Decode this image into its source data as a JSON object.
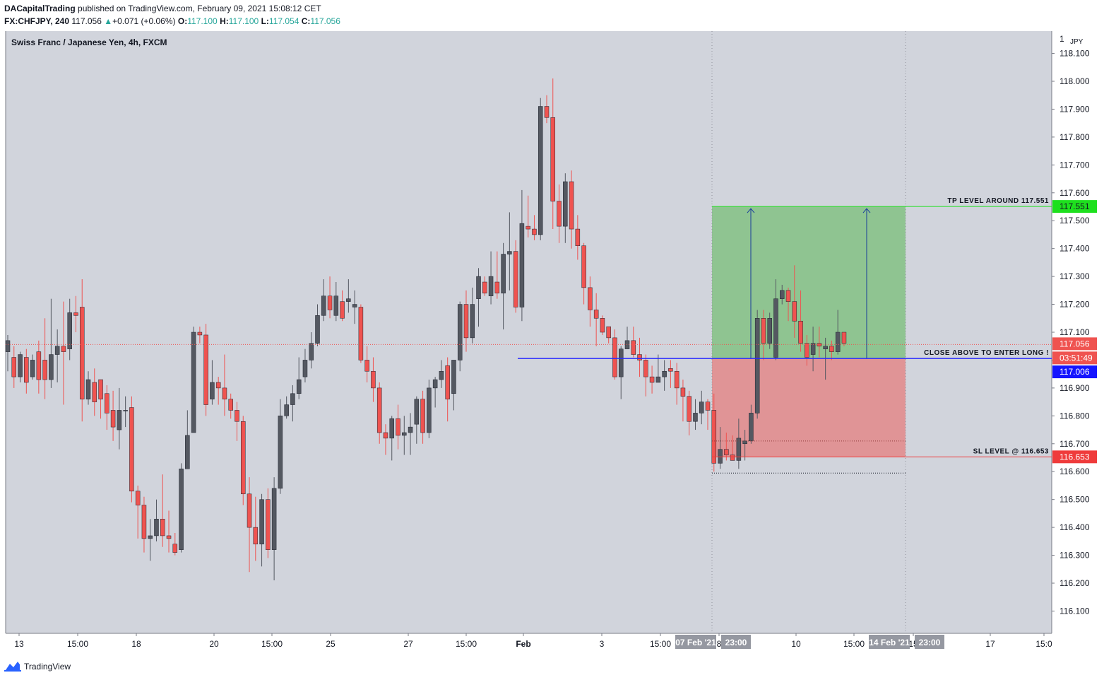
{
  "header": {
    "publisher": "DACapitalTrading",
    "published_text": "published on TradingView.com, February 09, 2021 15:08:12 CET",
    "symbol": "FX:CHFJPY, 240",
    "last": "117.056",
    "change": "+0.071 (+0.06%)",
    "o_label": "O:",
    "o": "117.100",
    "h_label": "H:",
    "h": "117.100",
    "l_label": "L:",
    "l": "117.054",
    "c_label": "C:",
    "c": "117.056"
  },
  "footer": {
    "brand": "TradingView"
  },
  "colors": {
    "background": "#d1d4dc",
    "up_candle": "#545861",
    "down_candle": "#ef5350",
    "tp_zone": "#8fc491",
    "sl_zone": "#e09496",
    "entry_line": "#2a2aff",
    "tp_line": "#1ee01e",
    "sl_line": "#ef3b3b"
  },
  "chart_data": {
    "type": "candlestick",
    "title": "Swiss Franc / Japanese Yen, 4h, FXCM",
    "ylabel": "JPY",
    "ylim": [
      116.02,
      118.18
    ],
    "y_ticks": [
      "116.100",
      "116.200",
      "116.300",
      "116.400",
      "116.500",
      "116.600",
      "116.700",
      "116.800",
      "116.900",
      "117.000",
      "117.100",
      "117.200",
      "117.300",
      "117.400",
      "117.500",
      "117.600",
      "117.700",
      "117.800",
      "117.900",
      "118.000",
      "118.100"
    ],
    "y_tick_top": "1",
    "x_ticks": [
      "13",
      "15:00",
      "18",
      "20",
      "15:00",
      "25",
      "27",
      "15:00",
      "Feb",
      "3",
      "15:00",
      "8",
      "10",
      "15:00",
      "15",
      "17",
      "15:0"
    ],
    "x_tick_bold": [
      "Feb"
    ],
    "x_highlight_labels": [
      "07 Feb '21",
      "23:00",
      "14 Feb '21",
      "23:00"
    ],
    "price_badges": {
      "tp": "117.551",
      "last": "117.056",
      "countdown": "03:51:49",
      "entry": "117.006",
      "sl": "116.653"
    },
    "annotations": {
      "tp": "TP LEVEL AROUND 117.551",
      "entry": "CLOSE ABOVE TO ENTER LONG !",
      "sl": "SL LEVEL @ 116.653"
    },
    "levels": {
      "tp": 117.551,
      "entry": 117.006,
      "sl": 116.653,
      "last": 117.056,
      "stop_dotted": 116.71,
      "lower_dotted": 116.595
    },
    "candles": [
      [
        117.03,
        117.07,
        116.96,
        117.09
      ],
      [
        117.01,
        116.94,
        116.9,
        117.05
      ],
      [
        116.94,
        117.02,
        116.92,
        117.03
      ],
      [
        117.01,
        116.92,
        116.88,
        117.04
      ],
      [
        116.94,
        117.0,
        116.93,
        117.02
      ],
      [
        117.03,
        116.93,
        116.88,
        117.07
      ],
      [
        117.0,
        116.93,
        116.86,
        117.15
      ],
      [
        116.93,
        117.02,
        116.9,
        117.22
      ],
      [
        117.02,
        117.05,
        116.92,
        117.11
      ],
      [
        117.05,
        117.03,
        116.84,
        117.21
      ],
      [
        117.04,
        117.17,
        117.0,
        117.22
      ],
      [
        117.17,
        117.16,
        117.1,
        117.23
      ],
      [
        117.19,
        116.86,
        116.78,
        117.29
      ],
      [
        116.86,
        116.93,
        116.84,
        116.96
      ],
      [
        116.92,
        116.85,
        116.8,
        116.97
      ],
      [
        116.93,
        116.86,
        116.79,
        116.93
      ],
      [
        116.88,
        116.81,
        116.75,
        116.91
      ],
      [
        116.82,
        116.76,
        116.71,
        116.89
      ],
      [
        116.75,
        116.82,
        116.68,
        116.9
      ],
      [
        116.82,
        116.82,
        116.76,
        116.87
      ],
      [
        116.83,
        116.53,
        116.49,
        116.87
      ],
      [
        116.53,
        116.48,
        116.36,
        116.55
      ],
      [
        116.48,
        116.36,
        116.31,
        116.51
      ],
      [
        116.36,
        116.37,
        116.28,
        116.43
      ],
      [
        116.37,
        116.43,
        116.35,
        116.5
      ],
      [
        116.43,
        116.37,
        116.33,
        116.59
      ],
      [
        116.37,
        116.36,
        116.31,
        116.46
      ],
      [
        116.34,
        116.31,
        116.3,
        116.38
      ],
      [
        116.32,
        116.61,
        116.31,
        116.63
      ],
      [
        116.61,
        116.73,
        116.62,
        116.82
      ],
      [
        116.74,
        117.1,
        116.74,
        117.12
      ],
      [
        117.1,
        117.09,
        117.06,
        117.12
      ],
      [
        117.09,
        116.84,
        116.8,
        117.13
      ],
      [
        116.86,
        116.92,
        116.84,
        117.0
      ],
      [
        116.92,
        116.9,
        116.84,
        116.94
      ],
      [
        116.9,
        116.86,
        116.8,
        117.02
      ],
      [
        116.86,
        116.82,
        116.79,
        116.88
      ],
      [
        116.82,
        116.78,
        116.71,
        116.85
      ],
      [
        116.78,
        116.52,
        116.48,
        116.8
      ],
      [
        116.52,
        116.4,
        116.24,
        116.58
      ],
      [
        116.4,
        116.34,
        116.28,
        116.51
      ],
      [
        116.34,
        116.5,
        116.26,
        116.52
      ],
      [
        116.5,
        116.32,
        116.29,
        116.54
      ],
      [
        116.32,
        116.54,
        116.21,
        116.58
      ],
      [
        116.54,
        116.8,
        116.52,
        116.86
      ],
      [
        116.8,
        116.84,
        116.79,
        116.87
      ],
      [
        116.84,
        116.88,
        116.78,
        116.91
      ],
      [
        116.88,
        116.93,
        116.86,
        117.01
      ],
      [
        116.94,
        117.0,
        116.92,
        117.04
      ],
      [
        117.0,
        117.06,
        116.97,
        117.1
      ],
      [
        117.06,
        117.16,
        117.05,
        117.2
      ],
      [
        117.16,
        117.23,
        117.14,
        117.29
      ],
      [
        117.23,
        117.18,
        117.15,
        117.3
      ],
      [
        117.16,
        117.23,
        117.14,
        117.28
      ],
      [
        117.21,
        117.15,
        117.14,
        117.25
      ],
      [
        117.21,
        117.22,
        117.17,
        117.29
      ],
      [
        117.19,
        117.2,
        117.13,
        117.25
      ],
      [
        117.19,
        117.0,
        116.99,
        117.2
      ],
      [
        117.0,
        116.96,
        116.92,
        117.05
      ],
      [
        116.96,
        116.9,
        116.85,
        117.01
      ],
      [
        116.9,
        116.74,
        116.7,
        116.92
      ],
      [
        116.74,
        116.72,
        116.66,
        116.77
      ],
      [
        116.72,
        116.79,
        116.64,
        116.8
      ],
      [
        116.79,
        116.73,
        116.68,
        116.84
      ],
      [
        116.73,
        116.74,
        116.66,
        116.8
      ],
      [
        116.74,
        116.76,
        116.66,
        116.81
      ],
      [
        116.77,
        116.86,
        116.7,
        116.87
      ],
      [
        116.86,
        116.74,
        116.7,
        116.89
      ],
      [
        116.74,
        116.9,
        116.72,
        116.93
      ],
      [
        116.9,
        116.93,
        116.83,
        116.94
      ],
      [
        116.93,
        116.96,
        116.9,
        117.0
      ],
      [
        116.98,
        116.86,
        116.78,
        117.01
      ],
      [
        116.88,
        117.0,
        116.82,
        117.0
      ],
      [
        117.0,
        117.2,
        116.96,
        117.21
      ],
      [
        117.2,
        117.08,
        117.03,
        117.25
      ],
      [
        117.08,
        117.2,
        117.06,
        117.26
      ],
      [
        117.22,
        117.3,
        117.12,
        117.33
      ],
      [
        117.28,
        117.24,
        117.23,
        117.3
      ],
      [
        117.23,
        117.3,
        117.2,
        117.39
      ],
      [
        117.28,
        117.24,
        117.22,
        117.39
      ],
      [
        117.24,
        117.38,
        117.11,
        117.42
      ],
      [
        117.38,
        117.39,
        117.25,
        117.53
      ],
      [
        117.39,
        117.19,
        117.17,
        117.43
      ],
      [
        117.19,
        117.49,
        117.14,
        117.61
      ],
      [
        117.48,
        117.47,
        117.44,
        117.59
      ],
      [
        117.47,
        117.45,
        117.43,
        117.52
      ],
      [
        117.45,
        117.91,
        117.43,
        117.94
      ],
      [
        117.91,
        117.87,
        117.85,
        117.95
      ],
      [
        117.87,
        117.57,
        117.47,
        118.01
      ],
      [
        117.57,
        117.48,
        117.42,
        117.63
      ],
      [
        117.48,
        117.64,
        117.42,
        117.67
      ],
      [
        117.64,
        117.47,
        117.4,
        117.68
      ],
      [
        117.47,
        117.41,
        117.36,
        117.52
      ],
      [
        117.41,
        117.26,
        117.2,
        117.42
      ],
      [
        117.26,
        117.18,
        117.12,
        117.3
      ],
      [
        117.18,
        117.15,
        117.05,
        117.24
      ],
      [
        117.15,
        117.1,
        117.09,
        117.16
      ],
      [
        117.12,
        117.08,
        117.06,
        117.12
      ],
      [
        117.08,
        116.94,
        116.93,
        117.11
      ],
      [
        116.94,
        117.04,
        116.86,
        117.05
      ],
      [
        117.04,
        117.07,
        117.04,
        117.12
      ],
      [
        117.07,
        117.02,
        117.01,
        117.12
      ],
      [
        117.02,
        117.0,
        116.94,
        117.08
      ],
      [
        117.0,
        116.94,
        116.87,
        117.02
      ],
      [
        116.94,
        116.92,
        116.88,
        116.98
      ],
      [
        116.92,
        116.94,
        116.92,
        117.02
      ],
      [
        116.94,
        116.96,
        116.89,
        117.0
      ],
      [
        116.97,
        116.96,
        116.9,
        117.0
      ],
      [
        116.96,
        116.9,
        116.84,
        116.99
      ],
      [
        116.9,
        116.87,
        116.78,
        116.93
      ],
      [
        116.87,
        116.78,
        116.73,
        116.89
      ],
      [
        116.78,
        116.81,
        116.75,
        116.86
      ],
      [
        116.81,
        116.85,
        116.77,
        116.89
      ],
      [
        116.85,
        116.82,
        116.75,
        116.86
      ],
      [
        116.82,
        116.63,
        116.6,
        116.88
      ],
      [
        116.63,
        116.68,
        116.61,
        116.76
      ],
      [
        116.68,
        116.66,
        116.64,
        116.74
      ],
      [
        116.66,
        116.64,
        116.64,
        116.73
      ],
      [
        116.64,
        116.72,
        116.61,
        116.79
      ],
      [
        116.7,
        116.71,
        116.64,
        116.75
      ],
      [
        116.71,
        116.81,
        116.7,
        116.84
      ],
      [
        116.81,
        117.15,
        116.79,
        117.18
      ],
      [
        117.15,
        117.06,
        117.0,
        117.18
      ],
      [
        117.06,
        117.15,
        117.04,
        117.17
      ],
      [
        117.01,
        117.22,
        117.0,
        117.29
      ],
      [
        117.22,
        117.25,
        117.2,
        117.27
      ],
      [
        117.25,
        117.21,
        117.14,
        117.26
      ],
      [
        117.21,
        117.14,
        117.08,
        117.34
      ],
      [
        117.14,
        117.06,
        117.03,
        117.25
      ],
      [
        117.06,
        117.01,
        116.98,
        117.09
      ],
      [
        117.02,
        117.06,
        116.96,
        117.12
      ],
      [
        117.06,
        117.05,
        117.01,
        117.12
      ],
      [
        117.04,
        117.05,
        116.93,
        117.08
      ],
      [
        117.05,
        117.03,
        117.0,
        117.07
      ],
      [
        117.03,
        117.1,
        117.02,
        117.18
      ],
      [
        117.1,
        117.06,
        117.05,
        117.1
      ]
    ]
  }
}
